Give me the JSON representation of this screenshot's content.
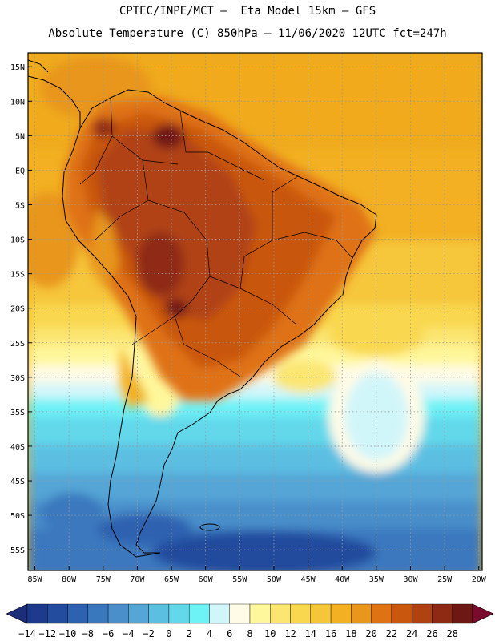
{
  "header": {
    "line1": "CPTEC/INPE/MCT —  Eta Model 15km — GFS",
    "line2": "Absolute Temperature (C) 850hPa — 11/06/2020 12UTC fct=247h"
  },
  "map": {
    "lat_labels": [
      "15N",
      "10N",
      "5N",
      "EQ",
      "5S",
      "10S",
      "15S",
      "20S",
      "25S",
      "30S",
      "35S",
      "40S",
      "45S",
      "50S",
      "55S"
    ],
    "lat_values": [
      15,
      10,
      5,
      0,
      -5,
      -10,
      -15,
      -20,
      -25,
      -30,
      -35,
      -40,
      -45,
      -50,
      -55
    ],
    "lon_labels": [
      "85W",
      "80W",
      "75W",
      "70W",
      "65W",
      "60W",
      "55W",
      "50W",
      "45W",
      "40W",
      "35W",
      "30W",
      "25W",
      "20W"
    ],
    "lon_values": [
      -85,
      -80,
      -75,
      -70,
      -65,
      -60,
      -55,
      -50,
      -45,
      -40,
      -35,
      -30,
      -25,
      -20
    ],
    "lat_range": [
      -58,
      17
    ],
    "lon_range": [
      -86,
      -19.5
    ]
  },
  "colorbar": {
    "labels": [
      "−14",
      "−12",
      "−10",
      "−8",
      "−6",
      "−4",
      "−2",
      "0",
      "2",
      "4",
      "6",
      "8",
      "10",
      "12",
      "14",
      "16",
      "18",
      "20",
      "22",
      "24",
      "26",
      "28"
    ],
    "values": [
      -14,
      -12,
      -10,
      -8,
      -6,
      -4,
      -2,
      0,
      2,
      4,
      6,
      8,
      10,
      12,
      14,
      16,
      18,
      20,
      22,
      24,
      26,
      28
    ],
    "colors": [
      "#1e3a8c",
      "#234c9e",
      "#2d62b0",
      "#3a78be",
      "#4a8fca",
      "#55a6d6",
      "#5bbfe2",
      "#62d8ea",
      "#6df2f6",
      "#d1f6fa",
      "#fffbe6",
      "#fff79c",
      "#fbe672",
      "#f9d850",
      "#f6c63a",
      "#f2b022",
      "#e8961c",
      "#df7212",
      "#c9570e",
      "#b04212",
      "#8e2a14",
      "#6e1814"
    ],
    "under_color": "#1c2e7a",
    "over_color": "#7a0a2e"
  }
}
